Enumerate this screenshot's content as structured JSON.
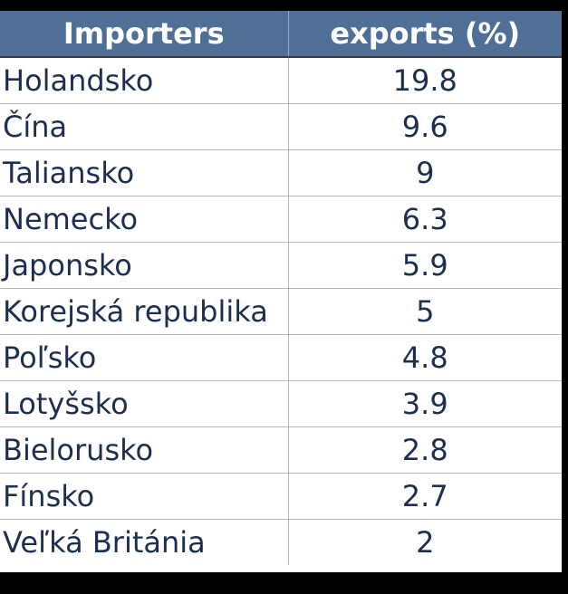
{
  "chart_data": {
    "type": "table",
    "columns": [
      "Importers",
      "exports (%)"
    ],
    "rows": [
      {
        "importer": "Holandsko",
        "value": "19.8"
      },
      {
        "importer": "Čína",
        "value": "9.6"
      },
      {
        "importer": "Taliansko",
        "value": "9"
      },
      {
        "importer": "Nemecko",
        "value": "6.3"
      },
      {
        "importer": "Japonsko",
        "value": "5.9"
      },
      {
        "importer": "Korejská republika",
        "value": "5"
      },
      {
        "importer": "Poľsko",
        "value": "4.8"
      },
      {
        "importer": "Lotyšsko",
        "value": "3.9"
      },
      {
        "importer": "Bielorusko",
        "value": "2.8"
      },
      {
        "importer": "Fínsko",
        "value": "2.7"
      },
      {
        "importer": "Veľká Británia",
        "value": "2"
      }
    ]
  },
  "colors": {
    "header_bg": "#4f6f97",
    "header_text": "#ffffff",
    "cell_text": "#1d2f4f",
    "page_bg": "#000000"
  }
}
